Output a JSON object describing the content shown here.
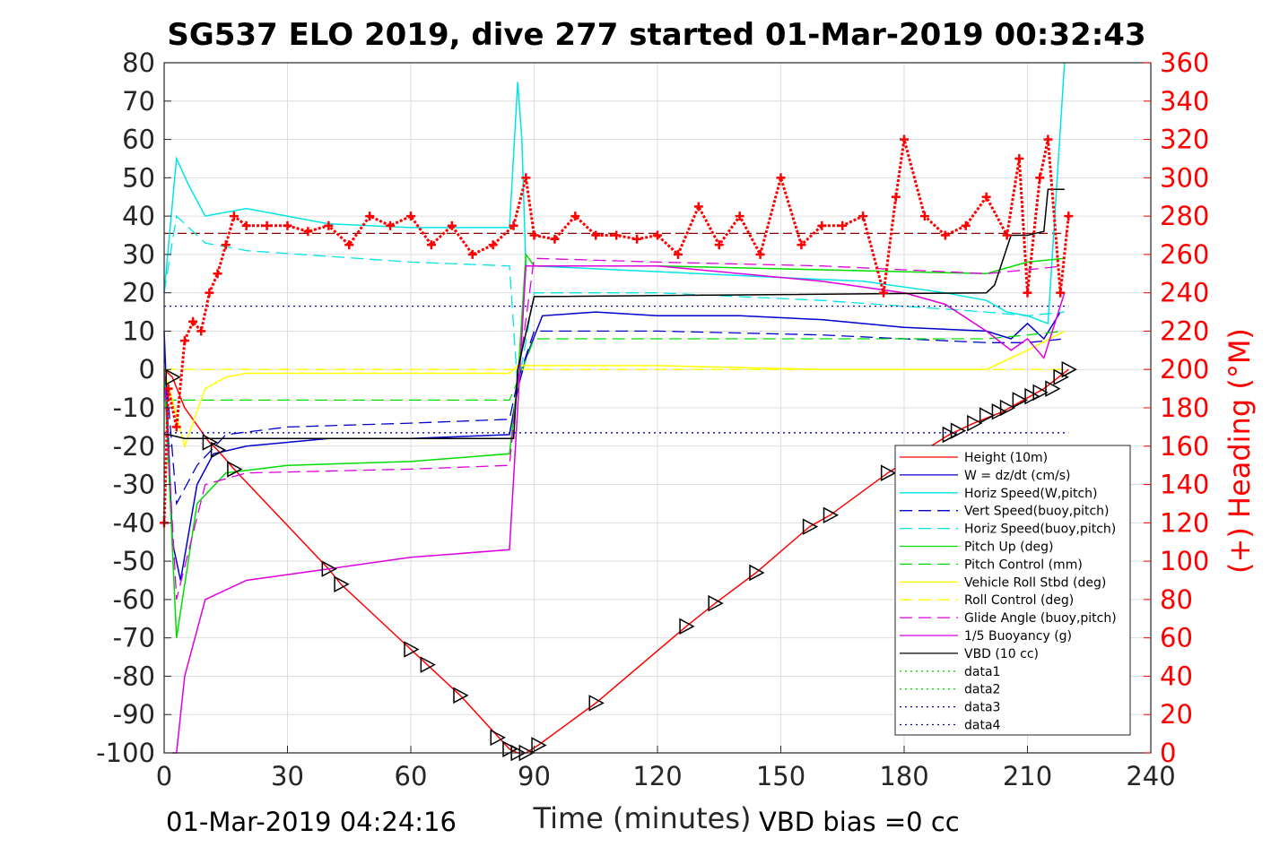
{
  "chart_data": {
    "type": "line",
    "title": "SG537 ELO 2019, dive 277 started 01-Mar-2019 00:32:43",
    "xlabel": "Time (minutes)",
    "ylabel_right": "(+) Heading (°M)",
    "footer_left": "01-Mar-2019 04:24:16",
    "footer_right": "VBD bias =0 cc",
    "xlim": [
      0,
      240
    ],
    "ylim": [
      -100,
      80
    ],
    "ylim_right": [
      0,
      360
    ],
    "x_ticks": [
      "0",
      "30",
      "60",
      "90",
      "120",
      "150",
      "180",
      "210",
      "240"
    ],
    "y_ticks": [
      "80",
      "70",
      "60",
      "50",
      "40",
      "30",
      "20",
      "10",
      "0",
      "-10",
      "-20",
      "-30",
      "-40",
      "-50",
      "-60",
      "-70",
      "-80",
      "-90",
      "-100"
    ],
    "y_ticks_right": [
      "360",
      "340",
      "320",
      "300",
      "280",
      "260",
      "240",
      "220",
      "200",
      "180",
      "160",
      "140",
      "120",
      "100",
      "80",
      "60",
      "40",
      "20",
      "0"
    ],
    "grid": true,
    "legend_position": "bottom-right",
    "series": [
      {
        "name": "Height (10m)",
        "color": "#ff0000",
        "style": "solid",
        "x": [
          0,
          2,
          5,
          11,
          13,
          17,
          40,
          43,
          60,
          64,
          72,
          84,
          86,
          88,
          91,
          105,
          127,
          134,
          144,
          157,
          162,
          176,
          191,
          197,
          204,
          209,
          214,
          220
        ],
        "y": [
          0,
          -2,
          -10,
          -19,
          -21,
          -26,
          -52,
          -56,
          -73,
          -77,
          -85,
          -99,
          -100,
          -100,
          -98,
          -87,
          -67,
          -61,
          -53,
          -41,
          -38,
          -27,
          -17,
          -14,
          -11,
          -8,
          -5,
          0
        ]
      },
      {
        "name": "W = dz/dt (cm/s)",
        "color": "#0000cc",
        "style": "solid",
        "x": [
          0,
          2,
          4,
          8,
          12,
          20,
          40,
          60,
          84,
          86,
          88,
          92,
          105,
          120,
          140,
          160,
          180,
          200,
          206,
          210,
          214,
          218
        ],
        "y": [
          10,
          -45,
          -55,
          -30,
          -22,
          -20,
          -18,
          -18,
          -17,
          -5,
          3,
          14,
          15,
          14,
          14,
          13,
          11,
          10,
          8,
          12,
          8,
          15
        ]
      },
      {
        "name": "Horiz Speed(W,pitch)",
        "color": "#00e5e5",
        "style": "solid",
        "x": [
          0,
          3,
          6,
          10,
          20,
          40,
          60,
          84,
          86,
          87,
          88,
          90,
          110,
          130,
          150,
          170,
          190,
          200,
          205,
          210,
          215,
          219
        ],
        "y": [
          20,
          55,
          48,
          40,
          42,
          38,
          37,
          37,
          75,
          60,
          27,
          27,
          26,
          25,
          24,
          23,
          20,
          18,
          15,
          14,
          12,
          80
        ]
      },
      {
        "name": "Vert Speed(buoy,pitch)",
        "color": "#0000cc",
        "style": "dashed",
        "x": [
          0,
          3,
          8,
          15,
          30,
          60,
          84,
          86,
          90,
          120,
          160,
          200,
          210,
          219
        ],
        "y": [
          5,
          -35,
          -25,
          -17,
          -15,
          -14,
          -13,
          -3,
          10,
          10,
          9,
          7,
          7,
          8
        ]
      },
      {
        "name": "Horiz Speed(buoy,pitch)",
        "color": "#00e5e5",
        "style": "dashed",
        "x": [
          0,
          3,
          10,
          20,
          60,
          84,
          86,
          90,
          120,
          160,
          200,
          210,
          219
        ],
        "y": [
          20,
          40,
          33,
          31,
          28,
          27,
          -5,
          20,
          20,
          18,
          15,
          14,
          15
        ]
      },
      {
        "name": "Pitch Up (deg)",
        "color": "#00dd00",
        "style": "solid",
        "x": [
          0,
          3,
          8,
          15,
          30,
          60,
          84,
          86,
          88,
          90,
          120,
          160,
          200,
          210,
          219
        ],
        "y": [
          0,
          -70,
          -35,
          -27,
          -25,
          -24,
          -22,
          -3,
          30,
          27,
          27,
          26,
          25,
          28,
          29
        ]
      },
      {
        "name": "Pitch Control (mm)",
        "color": "#00dd00",
        "style": "dashed",
        "x": [
          0,
          10,
          84,
          86,
          90,
          200,
          210,
          219
        ],
        "y": [
          -8,
          -8,
          -8,
          -3,
          8,
          8,
          9,
          10
        ]
      },
      {
        "name": "Vehicle Roll Stbd (deg)",
        "color": "#ffff00",
        "style": "solid",
        "x": [
          0,
          5,
          10,
          15,
          20,
          40,
          60,
          84,
          86,
          88,
          92,
          120,
          160,
          200,
          210,
          219
        ],
        "y": [
          0,
          -20,
          -5,
          -2,
          -1,
          -1,
          -1,
          -1,
          1,
          1,
          1,
          1,
          0,
          0,
          5,
          10
        ]
      },
      {
        "name": "Roll Control (deg)",
        "color": "#ffff00",
        "style": "dashed",
        "x": [
          0,
          10,
          84,
          86,
          90,
          200,
          219
        ],
        "y": [
          0,
          0,
          0,
          0,
          0,
          0,
          0
        ]
      },
      {
        "name": "Glide Angle (buoy,pitch)",
        "color": "#dd00dd",
        "style": "dashed",
        "x": [
          0,
          3,
          10,
          20,
          60,
          84,
          86,
          90,
          120,
          160,
          200,
          210,
          219
        ],
        "y": [
          0,
          -60,
          -30,
          -27,
          -26,
          -25,
          -3,
          29,
          28,
          27,
          25,
          26,
          27
        ]
      },
      {
        "name": "1/5 Buoyancy (g)",
        "color": "#dd00dd",
        "style": "solid",
        "x": [
          2,
          3,
          5,
          10,
          20,
          40,
          60,
          84,
          88,
          90,
          120,
          160,
          180,
          190,
          200,
          206,
          210,
          214,
          219
        ],
        "y": [
          -100,
          -100,
          -80,
          -60,
          -55,
          -52,
          -49,
          -47,
          27,
          27,
          27,
          23,
          20,
          17,
          10,
          5,
          8,
          3,
          20
        ]
      },
      {
        "name": "VBD (10 cc)",
        "color": "#000000",
        "style": "solid",
        "x": [
          0,
          1,
          5,
          84,
          85,
          86,
          90,
          200,
          202,
          206,
          210,
          214,
          215,
          219
        ],
        "y": [
          -17,
          -17,
          -18,
          -18,
          -18,
          0,
          19,
          20,
          22,
          35,
          35,
          36,
          47,
          47
        ]
      },
      {
        "name": "data1",
        "color": "#00dd00",
        "style": "dotted",
        "x": [],
        "y": []
      },
      {
        "name": "data2",
        "color": "#00dd00",
        "style": "dotted",
        "x": [],
        "y": []
      },
      {
        "name": "data3",
        "color": "#0000cc",
        "style": "dotted",
        "x": [
          0,
          220
        ],
        "y": [
          16.5,
          16.5
        ]
      },
      {
        "name": "data4",
        "color": "#0000cc",
        "style": "dotted",
        "x": [
          0,
          220
        ],
        "y": [
          -16.5,
          -16.5
        ]
      }
    ],
    "heading_series": {
      "name": "(+) Heading (°M)",
      "color": "#ff0000",
      "marker": "+",
      "x": [
        0,
        1,
        3,
        5,
        7,
        9,
        11,
        13,
        15,
        17,
        20,
        25,
        30,
        35,
        40,
        45,
        50,
        55,
        60,
        65,
        70,
        75,
        80,
        85,
        88,
        90,
        95,
        100,
        105,
        110,
        115,
        120,
        125,
        130,
        135,
        140,
        145,
        150,
        155,
        160,
        165,
        170,
        175,
        178,
        180,
        185,
        190,
        195,
        200,
        205,
        208,
        210,
        213,
        215,
        218,
        220
      ],
      "y": [
        120,
        190,
        170,
        215,
        225,
        220,
        240,
        250,
        265,
        280,
        275,
        275,
        275,
        272,
        275,
        265,
        280,
        275,
        280,
        265,
        275,
        260,
        265,
        275,
        300,
        270,
        268,
        280,
        270,
        270,
        268,
        270,
        260,
        285,
        265,
        280,
        260,
        300,
        265,
        275,
        275,
        280,
        240,
        290,
        320,
        280,
        270,
        275,
        290,
        270,
        310,
        240,
        300,
        320,
        240,
        280
      ]
    },
    "vbd_reference": 271,
    "event_markers": {
      "x": [
        2,
        11,
        13,
        17,
        40,
        43,
        60,
        64,
        72,
        81,
        84,
        86,
        88,
        91,
        105,
        127,
        134,
        144,
        157,
        162,
        176,
        191,
        193,
        197,
        200,
        203,
        205,
        208,
        211,
        213,
        216,
        218,
        220
      ],
      "y": [
        -2,
        -19,
        -21,
        -26,
        -52,
        -56,
        -73,
        -77,
        -85,
        -96,
        -99,
        -100,
        -100,
        -98,
        -87,
        -67,
        -61,
        -53,
        -41,
        -38,
        -27,
        -17,
        -16,
        -14,
        -12,
        -11,
        -10,
        -8,
        -7,
        -6,
        -5,
        -2,
        0
      ]
    }
  }
}
